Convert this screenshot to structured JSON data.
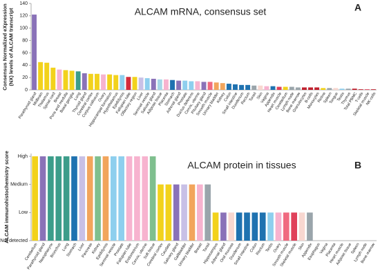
{
  "chart_data": [
    {
      "type": "bar",
      "title": "ALCAM mRNA, consensus set",
      "panel_label": "A",
      "ylabel": [
        "Consensus Normalized eXpression",
        "(NX) levels of ALCAM transcript"
      ],
      "categories": [
        "Parathyroid gland",
        "Midbrain",
        "Thalamus",
        "Spinal cord",
        "Breast",
        "Pons and medulla",
        "Basal ganglia",
        "Lung",
        "Thyroid gland",
        "Cerebral cortex",
        "Corpus callosum",
        "Ovary",
        "Hippocampal formation",
        "Hypothalamus",
        "Epididymis",
        "Fallopian tube",
        "Olfactory region",
        "Liver",
        "Seminal vesicle",
        "Salivary gland",
        "Adipose tissue",
        "Placenta",
        "Stomach",
        "Adrenal gland",
        "Prostate",
        "Ductus deferens",
        "Cervix, uterine",
        "Pituitary gland",
        "Smooth muscle",
        "Urinary bladder",
        "Kidney",
        "Colon",
        "Small intestine",
        "Duodenum",
        "Rectum",
        "Tonsil",
        "Skin",
        "Vagina",
        "Appendix",
        "Heart muscle",
        "Cerebellum",
        "Lymph node",
        "Bone marrow",
        "Granulocytes",
        "B-cells",
        "Monocytes",
        "Retina",
        "Spleen",
        "Tongue",
        "Testis",
        "Thymus",
        "Total PBMC",
        "T-cells",
        "Skeletal muscle",
        "NK-cells"
      ],
      "values": [
        122,
        45,
        44,
        36,
        33,
        32,
        31,
        30,
        27,
        26,
        26,
        25,
        25,
        24,
        24,
        21,
        21,
        20,
        19,
        18,
        17,
        17,
        16,
        15,
        15,
        14,
        14,
        13,
        13,
        12,
        11,
        10,
        9,
        8,
        8,
        7,
        7,
        6,
        6,
        5,
        5,
        5,
        4,
        4,
        4,
        4,
        3,
        3,
        3,
        2,
        2,
        2,
        1,
        1,
        1
      ],
      "colors": [
        "#8a72b8",
        "#f2d21c",
        "#f2d21c",
        "#f2d21c",
        "#f7b3cf",
        "#f2d21c",
        "#f2d21c",
        "#3c9d8a",
        "#8a72b8",
        "#f2d21c",
        "#f2d21c",
        "#f7b3cf",
        "#f2d21c",
        "#f2d21c",
        "#8ecfee",
        "#d42b3a",
        "#f2d21c",
        "#c8c0e6",
        "#8ecfee",
        "#8a72b8",
        "#a6d7e8",
        "#f7b3cf",
        "#1f72b0",
        "#8a72b8",
        "#8ecfee",
        "#8ecfee",
        "#f7b3cf",
        "#8a72b8",
        "#f06a80",
        "#f2a55c",
        "#f2a55c",
        "#1f72b0",
        "#1f72b0",
        "#1f72b0",
        "#1f72b0",
        "#9aa5ab",
        "#f8d7d0",
        "#f7b3cf",
        "#1f72b0",
        "#e0415a",
        "#f2d21c",
        "#9aa5ab",
        "#9aa5ab",
        "#c0202e",
        "#c0202e",
        "#c0202e",
        "#f2d21c",
        "#9aa5ab",
        "#f8d7d0",
        "#8ecfee",
        "#9aa5ab",
        "#c0202e",
        "#c0202e",
        "#e0415a",
        "#c0202e"
      ],
      "ylim": [
        0,
        140
      ],
      "yticks": [
        0,
        20,
        40,
        60,
        80,
        100,
        120,
        140
      ]
    },
    {
      "type": "bar",
      "title": "ALCAM protein in tissues",
      "panel_label": "B",
      "ylabel": [
        "ALCAM immunohistochemistry score"
      ],
      "categories": [
        "Cerebellum",
        "Parathyroid gland",
        "Nasopharynx",
        "Bronchus",
        "Lung",
        "Stomach",
        "Liver",
        "Pancreas",
        "Kidney",
        "Epididymis",
        "Seminal vesicle",
        "Prostate",
        "Fallopian tube",
        "Endometrium",
        "Cervix, uterine",
        "Soft tissue",
        "Cerebral cortex",
        "Caudate",
        "Salivary gland",
        "Gallbladder",
        "Urinary bladder",
        "Breast",
        "Tonsil",
        "Hippocampus",
        "Adrenal gland",
        "Oral mucosa",
        "Duodenum",
        "Small intestine",
        "Colon",
        "Rectum",
        "Testis",
        "Ovary",
        "Smooth muscle",
        "Skeletal muscle",
        "Skin",
        "Appendix",
        "Esophagus",
        "Vagina",
        "Placenta",
        "Heart muscle",
        "Adipose tissue",
        "Spleen",
        "Lymph node",
        "Bone marrow"
      ],
      "values": [
        3,
        3,
        3,
        3,
        3,
        3,
        3,
        3,
        3,
        3,
        3,
        3,
        3,
        3,
        3,
        3,
        2,
        2,
        2,
        2,
        2,
        2,
        2,
        1,
        1,
        1,
        1,
        1,
        1,
        1,
        1,
        1,
        1,
        1,
        1,
        1,
        0,
        0,
        0,
        0,
        0,
        0,
        0,
        0
      ],
      "colors": [
        "#f2d21c",
        "#8a72b8",
        "#3c9d8a",
        "#3c9d8a",
        "#3c9d8a",
        "#1f72b0",
        "#c8c0e6",
        "#f2a55c",
        "#7fbf8e",
        "#f2a55c",
        "#8ecfee",
        "#8ecfee",
        "#f7b3cf",
        "#f7b3cf",
        "#f7b3cf",
        "#7fbf8e",
        "#f2d21c",
        "#f2d21c",
        "#8a72b8",
        "#c8c0e6",
        "#f2a55c",
        "#f7b3cf",
        "#9aa5ab",
        "#f2d21c",
        "#8a72b8",
        "#f8d7d0",
        "#1f72b0",
        "#1f72b0",
        "#1f72b0",
        "#1f72b0",
        "#8ecfee",
        "#f7b3cf",
        "#f06a80",
        "#e0415a",
        "#f8d7d0",
        "#9aa5ab",
        "#1f72b0",
        "#f7b3cf",
        "#f7b3cf",
        "#e0415a",
        "#a6d7e8",
        "#9aa5ab",
        "#9aa5ab",
        "#9aa5ab"
      ],
      "ylim": [
        0,
        3.1
      ],
      "yticks": [
        {
          "value": 0,
          "label": "Not detected"
        },
        {
          "value": 1,
          "label": "Low"
        },
        {
          "value": 2,
          "label": "Medium"
        },
        {
          "value": 3,
          "label": "High"
        }
      ]
    }
  ]
}
